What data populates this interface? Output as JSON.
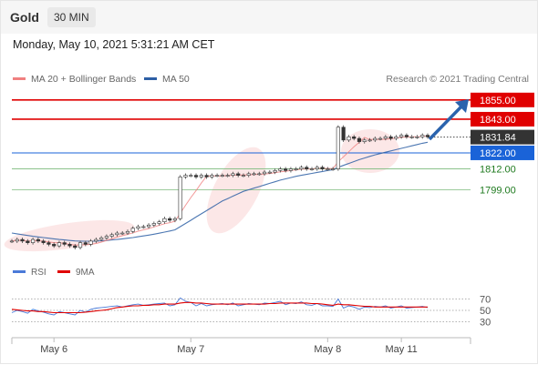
{
  "header": {
    "title": "Gold",
    "timeframe": "30 MIN",
    "datetime": "Monday, May 10, 2021 5:31:21 AM CET"
  },
  "legend": {
    "ma20": "MA 20 + Bollinger Bands",
    "ma50": "MA 50",
    "credit": "Research © 2021 Trading Central"
  },
  "rsi_legend": {
    "rsi": "RSI",
    "ma9": "9MA"
  },
  "colors": {
    "resistance": "#e00000",
    "support": "#1a63d8",
    "target": "#2a9a2a",
    "current": "#333333",
    "ma20": "#f08080",
    "ma50": "#2d5fa5",
    "rsi": "#4a7ad8",
    "rsi_ma": "#e00000",
    "arrow": "#2a63ad"
  },
  "chart_data": {
    "type": "line",
    "price_levels": [
      {
        "label": "1855.00",
        "value": 1855.0,
        "kind": "resistance"
      },
      {
        "label": "1843.00",
        "value": 1843.0,
        "kind": "resistance"
      },
      {
        "label": "1831.84",
        "value": 1831.84,
        "kind": "current"
      },
      {
        "label": "1822.00",
        "value": 1822.0,
        "kind": "support"
      },
      {
        "label": "1812.00",
        "value": 1812.0,
        "kind": "target"
      },
      {
        "label": "1799.00",
        "value": 1799.0,
        "kind": "target"
      }
    ],
    "x_tick_labels": [
      "May 6",
      "May 7",
      "May 8",
      "May 11"
    ],
    "x_tick_positions": [
      8,
      34,
      60,
      74
    ],
    "ylim": [
      1755,
      1860
    ],
    "price_close": [
      1767,
      1768,
      1767,
      1766,
      1768,
      1767,
      1766,
      1765,
      1764,
      1766,
      1765,
      1764,
      1763,
      1766,
      1765,
      1767,
      1768,
      1769,
      1770,
      1771,
      1772,
      1772,
      1773,
      1775,
      1776,
      1776,
      1777,
      1778,
      1779,
      1781,
      1780,
      1781,
      1807,
      1808,
      1808,
      1807,
      1808,
      1807,
      1808,
      1808,
      1808,
      1808,
      1809,
      1808,
      1808,
      1809,
      1809,
      1809,
      1810,
      1810,
      1811,
      1812,
      1811,
      1812,
      1812,
      1813,
      1812,
      1812,
      1813,
      1812,
      1812,
      1812,
      1838,
      1830,
      1832,
      1831,
      1829,
      1830,
      1830,
      1831,
      1831,
      1832,
      1831,
      1832,
      1833,
      1832,
      1832,
      1832,
      1833,
      1832
    ],
    "ma50": [
      1772,
      1771.5,
      1771,
      1770.5,
      1770,
      1769.6,
      1769.2,
      1768.8,
      1768.4,
      1768,
      1767.7,
      1767.4,
      1767.1,
      1767,
      1766.9,
      1766.9,
      1767,
      1767.2,
      1767.4,
      1767.7,
      1768,
      1768.4,
      1768.8,
      1769.2,
      1769.7,
      1770.2,
      1770.7,
      1771.3,
      1771.9,
      1772.6,
      1773.3,
      1774,
      1776,
      1778,
      1780,
      1782,
      1784,
      1786,
      1788,
      1790,
      1792,
      1793.5,
      1795,
      1796.5,
      1798,
      1799,
      1800,
      1801,
      1802,
      1803,
      1804,
      1805,
      1805.8,
      1806.6,
      1807.4,
      1808,
      1808.6,
      1809.2,
      1809.8,
      1810.4,
      1811,
      1811.5,
      1813,
      1814.2,
      1815.4,
      1816.6,
      1817.8,
      1818.8,
      1819.8,
      1820.8,
      1821.6,
      1822.4,
      1823.2,
      1824,
      1824.8,
      1825.6,
      1826.4,
      1827.2,
      1828,
      1828.6
    ],
    "rsi": [
      46,
      50,
      48,
      45,
      52,
      49,
      47,
      44,
      42,
      48,
      46,
      44,
      42,
      50,
      47,
      52,
      54,
      55,
      56,
      57,
      58,
      56,
      58,
      60,
      61,
      59,
      60,
      61,
      62,
      63,
      58,
      60,
      72,
      66,
      64,
      58,
      62,
      58,
      60,
      61,
      62,
      60,
      63,
      58,
      60,
      62,
      61,
      60,
      63,
      62,
      64,
      66,
      60,
      63,
      62,
      65,
      60,
      59,
      62,
      58,
      58,
      57,
      70,
      54,
      58,
      56,
      52,
      56,
      55,
      57,
      56,
      58,
      54,
      56,
      58,
      54,
      55,
      56,
      57,
      55
    ],
    "rsi_ma": [
      52,
      51,
      50,
      49,
      49,
      48,
      48,
      47,
      46,
      46,
      46,
      46,
      46,
      46,
      47,
      48,
      49,
      50,
      51,
      53,
      55,
      56,
      57,
      58,
      58,
      59,
      59,
      60,
      60,
      61,
      61,
      61,
      63,
      64,
      64,
      63,
      63,
      62,
      61,
      61,
      61,
      61,
      61,
      61,
      61,
      61,
      61,
      61,
      61,
      62,
      62,
      63,
      63,
      63,
      63,
      63,
      63,
      62,
      62,
      61,
      60,
      59,
      61,
      60,
      60,
      59,
      58,
      57,
      57,
      56,
      56,
      56,
      56,
      56,
      56,
      56,
      56,
      56,
      56,
      56
    ],
    "rsi_levels": [
      70,
      50,
      30
    ]
  }
}
